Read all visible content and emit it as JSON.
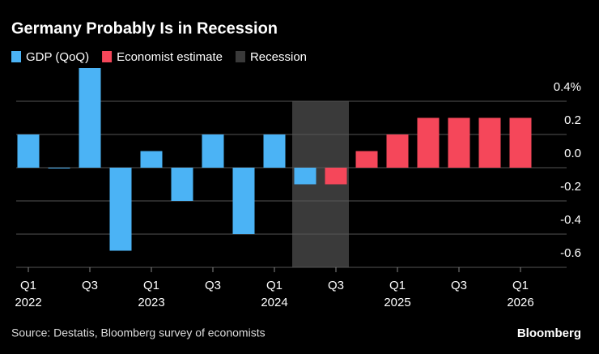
{
  "chart_data": {
    "type": "bar",
    "title": "Germany Probably Is in Recession",
    "categories": [
      "Q1",
      null,
      "Q3",
      null,
      "Q1",
      null,
      "Q3",
      null,
      "Q1",
      null,
      "Q3",
      null,
      "Q1",
      null,
      "Q3",
      null,
      "Q1"
    ],
    "years": [
      "2022",
      null,
      null,
      null,
      "2023",
      null,
      null,
      null,
      "2024",
      null,
      null,
      null,
      "2025",
      null,
      null,
      null,
      "2026"
    ],
    "series": [
      {
        "name": "GDP (QoQ)",
        "color": "#4bb3f5",
        "values": [
          0.2,
          0.0,
          0.6,
          -0.5,
          0.1,
          -0.2,
          0.2,
          -0.4,
          0.2,
          -0.1,
          null,
          null,
          null,
          null,
          null,
          null,
          null
        ]
      },
      {
        "name": "Economist estimate",
        "color": "#f5475a",
        "values": [
          null,
          null,
          null,
          null,
          null,
          null,
          null,
          null,
          null,
          null,
          -0.1,
          0.1,
          0.2,
          0.3,
          0.3,
          0.3,
          0.3
        ]
      }
    ],
    "shading": {
      "name": "Recession",
      "color": "#3a3a3a",
      "categories": [
        9,
        10
      ]
    },
    "ylim": [
      -0.6,
      0.6
    ],
    "yticks": [
      {
        "value": 0.4,
        "label": "0.4%"
      },
      0.2,
      {
        "value": 0,
        "label": "0.0"
      },
      -0.2,
      -0.4,
      -0.6
    ],
    "grid": true,
    "source": "Source: Destatis, Bloomberg survey of economists",
    "brand": "Bloomberg"
  }
}
